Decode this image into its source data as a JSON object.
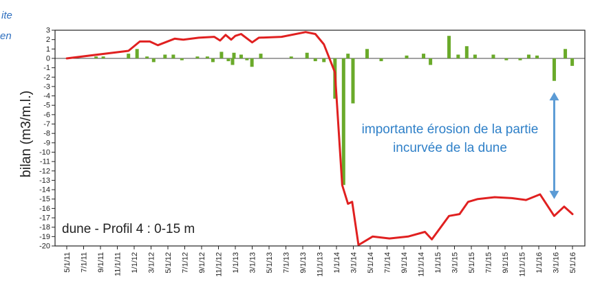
{
  "header_fragments": [
    "ite",
    "en"
  ],
  "chart_data": {
    "type": "bar",
    "ylabel": "bilan (m3/m.l.)",
    "ylim": [
      -20,
      3
    ],
    "yticks": [
      3,
      2,
      1,
      0,
      -1,
      -2,
      -3,
      -4,
      -5,
      -6,
      -7,
      -8,
      -9,
      -10,
      -11,
      -12,
      -13,
      -14,
      -15,
      -16,
      -17,
      -18,
      -19,
      -20
    ],
    "xticks": [
      "5/1/11",
      "7/1/11",
      "9/1/11",
      "11/1/11",
      "1/1/12",
      "3/1/12",
      "5/1/12",
      "7/1/12",
      "9/1/12",
      "11/1/12",
      "1/1/13",
      "3/1/13",
      "5/1/13",
      "7/1/13",
      "9/1/13",
      "11/1/13",
      "1/1/14",
      "3/1/14",
      "5/1/14",
      "7/1/14",
      "9/1/14",
      "11/1/14",
      "1/1/15",
      "3/1/15",
      "5/1/15",
      "7/1/15",
      "9/1/15",
      "11/1/15",
      "1/1/16",
      "3/1/16",
      "5/1/16"
    ],
    "inner_label": "dune - Profil 4 : 0-15 m",
    "annotation": "importante érosion de la partie incurvée de la dune",
    "bar_color": "#6aaa2a",
    "line_color": "#e02020",
    "arrow_color": "#5b9bd5",
    "bars": [
      {
        "x": "2011-08-15",
        "value": 0.2
      },
      {
        "x": "2011-09-10",
        "value": 0.2
      },
      {
        "x": "2011-12-10",
        "value": 0.5
      },
      {
        "x": "2012-01-10",
        "value": 1.0
      },
      {
        "x": "2012-02-15",
        "value": 0.2
      },
      {
        "x": "2012-03-10",
        "value": -0.4
      },
      {
        "x": "2012-04-20",
        "value": 0.4
      },
      {
        "x": "2012-05-20",
        "value": 0.4
      },
      {
        "x": "2012-06-20",
        "value": -0.2
      },
      {
        "x": "2012-08-15",
        "value": 0.2
      },
      {
        "x": "2012-09-20",
        "value": 0.2
      },
      {
        "x": "2012-10-10",
        "value": -0.4
      },
      {
        "x": "2012-11-10",
        "value": 0.7
      },
      {
        "x": "2012-12-05",
        "value": -0.3
      },
      {
        "x": "2012-12-20",
        "value": -0.7
      },
      {
        "x": "2012-12-25",
        "value": 0.6
      },
      {
        "x": "2013-01-20",
        "value": 0.4
      },
      {
        "x": "2013-02-10",
        "value": -0.2
      },
      {
        "x": "2013-02-28",
        "value": -0.9
      },
      {
        "x": "2013-04-01",
        "value": 0.5
      },
      {
        "x": "2013-07-20",
        "value": 0.2
      },
      {
        "x": "2013-09-15",
        "value": 0.6
      },
      {
        "x": "2013-10-15",
        "value": -0.3
      },
      {
        "x": "2013-11-15",
        "value": -0.4
      },
      {
        "x": "2013-12-25",
        "value": -4.3
      },
      {
        "x": "2014-01-25",
        "value": -13.5
      },
      {
        "x": "2014-02-10",
        "value": 0.5
      },
      {
        "x": "2014-02-28",
        "value": -4.8
      },
      {
        "x": "2014-04-20",
        "value": 1.0
      },
      {
        "x": "2014-06-10",
        "value": -0.3
      },
      {
        "x": "2014-09-10",
        "value": 0.3
      },
      {
        "x": "2014-11-10",
        "value": 0.5
      },
      {
        "x": "2014-12-05",
        "value": -0.7
      },
      {
        "x": "2015-02-10",
        "value": 2.4
      },
      {
        "x": "2015-03-15",
        "value": 0.4
      },
      {
        "x": "2015-04-15",
        "value": 1.3
      },
      {
        "x": "2015-05-15",
        "value": 0.4
      },
      {
        "x": "2015-07-20",
        "value": 0.4
      },
      {
        "x": "2015-09-05",
        "value": -0.2
      },
      {
        "x": "2015-10-25",
        "value": -0.2
      },
      {
        "x": "2015-11-25",
        "value": 0.4
      },
      {
        "x": "2015-12-25",
        "value": 0.3
      },
      {
        "x": "2016-02-25",
        "value": -2.4
      },
      {
        "x": "2016-04-05",
        "value": 1.0
      },
      {
        "x": "2016-04-30",
        "value": -0.8
      }
    ],
    "line": [
      {
        "x": "2011-05-01",
        "y": 0.0
      },
      {
        "x": "2011-12-10",
        "y": 0.8
      },
      {
        "x": "2012-01-20",
        "y": 1.8
      },
      {
        "x": "2012-02-25",
        "y": 1.8
      },
      {
        "x": "2012-03-25",
        "y": 1.4
      },
      {
        "x": "2012-05-25",
        "y": 2.1
      },
      {
        "x": "2012-06-25",
        "y": 2.0
      },
      {
        "x": "2012-08-20",
        "y": 2.2
      },
      {
        "x": "2012-10-15",
        "y": 2.3
      },
      {
        "x": "2012-11-05",
        "y": 1.9
      },
      {
        "x": "2012-11-25",
        "y": 2.5
      },
      {
        "x": "2012-12-15",
        "y": 2.0
      },
      {
        "x": "2012-12-30",
        "y": 2.4
      },
      {
        "x": "2013-01-20",
        "y": 2.6
      },
      {
        "x": "2013-03-01",
        "y": 1.7
      },
      {
        "x": "2013-03-25",
        "y": 2.2
      },
      {
        "x": "2013-06-15",
        "y": 2.3
      },
      {
        "x": "2013-09-10",
        "y": 2.8
      },
      {
        "x": "2013-10-15",
        "y": 2.6
      },
      {
        "x": "2013-11-15",
        "y": 1.5
      },
      {
        "x": "2013-12-25",
        "y": -1.5
      },
      {
        "x": "2014-01-20",
        "y": -13.5
      },
      {
        "x": "2014-02-10",
        "y": -15.5
      },
      {
        "x": "2014-02-25",
        "y": -15.3
      },
      {
        "x": "2014-03-20",
        "y": -19.9
      },
      {
        "x": "2014-05-10",
        "y": -19.0
      },
      {
        "x": "2014-07-10",
        "y": -19.2
      },
      {
        "x": "2014-09-15",
        "y": -19.0
      },
      {
        "x": "2014-11-15",
        "y": -18.5
      },
      {
        "x": "2014-12-10",
        "y": -19.3
      },
      {
        "x": "2015-02-10",
        "y": -16.8
      },
      {
        "x": "2015-03-20",
        "y": -16.6
      },
      {
        "x": "2015-04-20",
        "y": -15.3
      },
      {
        "x": "2015-05-25",
        "y": -15.0
      },
      {
        "x": "2015-07-25",
        "y": -14.8
      },
      {
        "x": "2015-09-25",
        "y": -14.9
      },
      {
        "x": "2015-11-15",
        "y": -15.1
      },
      {
        "x": "2016-01-05",
        "y": -14.5
      },
      {
        "x": "2016-02-25",
        "y": -16.8
      },
      {
        "x": "2016-04-01",
        "y": -15.8
      },
      {
        "x": "2016-05-01",
        "y": -16.6
      }
    ],
    "arrow": {
      "x": "2016-02-25",
      "from": -3.6,
      "to": -15.0
    }
  }
}
